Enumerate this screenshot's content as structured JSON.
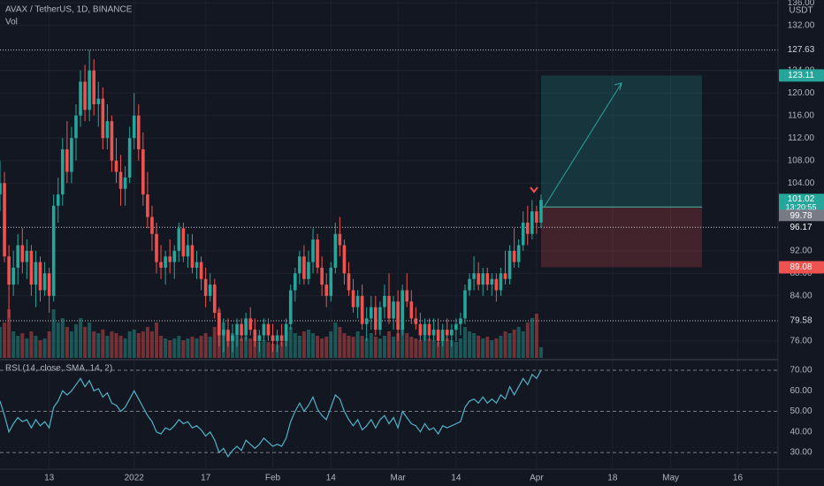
{
  "chart_data": {
    "type": "candlestick",
    "title": "AVAX / TetherUS, 1D, BINANCE",
    "volume_label": "Vol",
    "currency": "USDT",
    "colors": {
      "up": "#26a69a",
      "down": "#ef5350",
      "rsi": "#4fb3c7"
    },
    "x": [
      "2021-12-02",
      "2021-12-03",
      "2021-12-04",
      "2021-12-05",
      "2021-12-06",
      "2021-12-07",
      "2021-12-08",
      "2021-12-09",
      "2021-12-10",
      "2021-12-11",
      "2021-12-12",
      "2021-12-13",
      "2021-12-14",
      "2021-12-15",
      "2021-12-16",
      "2021-12-17",
      "2021-12-18",
      "2021-12-19",
      "2021-12-20",
      "2021-12-21",
      "2021-12-22",
      "2021-12-23",
      "2021-12-24",
      "2021-12-25",
      "2021-12-26",
      "2021-12-27",
      "2021-12-28",
      "2021-12-29",
      "2021-12-30",
      "2021-12-31",
      "2022-01-01",
      "2022-01-02",
      "2022-01-03",
      "2022-01-04",
      "2022-01-05",
      "2022-01-06",
      "2022-01-07",
      "2022-01-08",
      "2022-01-09",
      "2022-01-10",
      "2022-01-11",
      "2022-01-12",
      "2022-01-13",
      "2022-01-14",
      "2022-01-15",
      "2022-01-16",
      "2022-01-17",
      "2022-01-18",
      "2022-01-19",
      "2022-01-20",
      "2022-01-21",
      "2022-01-22",
      "2022-01-23",
      "2022-01-24",
      "2022-01-25",
      "2022-01-26",
      "2022-01-27",
      "2022-01-28",
      "2022-01-29",
      "2022-01-30",
      "2022-01-31",
      "2022-02-01",
      "2022-02-02",
      "2022-02-03",
      "2022-02-04",
      "2022-02-05",
      "2022-02-06",
      "2022-02-07",
      "2022-02-08",
      "2022-02-09",
      "2022-02-10",
      "2022-02-11",
      "2022-02-12",
      "2022-02-13",
      "2022-02-14",
      "2022-02-15",
      "2022-02-16",
      "2022-02-17",
      "2022-02-18",
      "2022-02-19",
      "2022-02-20",
      "2022-02-21",
      "2022-02-22",
      "2022-02-23",
      "2022-02-24",
      "2022-02-25",
      "2022-02-26",
      "2022-02-27",
      "2022-02-28",
      "2022-03-01",
      "2022-03-02",
      "2022-03-03",
      "2022-03-04",
      "2022-03-05",
      "2022-03-06",
      "2022-03-07",
      "2022-03-08",
      "2022-03-09",
      "2022-03-10",
      "2022-03-11",
      "2022-03-12",
      "2022-03-13",
      "2022-03-14",
      "2022-03-15",
      "2022-03-16",
      "2022-03-17",
      "2022-03-18",
      "2022-03-19",
      "2022-03-20",
      "2022-03-21",
      "2022-03-22",
      "2022-03-23",
      "2022-03-24",
      "2022-03-25",
      "2022-03-26",
      "2022-03-27",
      "2022-03-28",
      "2022-03-29",
      "2022-03-30",
      "2022-03-31",
      "2022-04-01",
      "2022-04-02"
    ],
    "ohlc": [
      [
        102,
        108,
        99,
        104
      ],
      [
        104,
        106,
        90,
        91
      ],
      [
        91,
        93,
        80,
        86
      ],
      [
        86,
        92,
        84,
        89
      ],
      [
        89,
        95,
        86,
        93
      ],
      [
        93,
        96,
        88,
        90
      ],
      [
        90,
        94,
        87,
        92
      ],
      [
        92,
        93,
        84,
        86
      ],
      [
        86,
        92,
        82,
        90
      ],
      [
        90,
        91,
        83,
        85
      ],
      [
        85,
        90,
        84,
        88
      ],
      [
        88,
        89,
        81,
        84
      ],
      [
        84,
        102,
        83,
        100
      ],
      [
        100,
        105,
        97,
        102
      ],
      [
        102,
        112,
        100,
        110
      ],
      [
        110,
        115,
        104,
        106
      ],
      [
        106,
        114,
        104,
        112
      ],
      [
        112,
        118,
        108,
        116
      ],
      [
        116,
        124,
        114,
        122
      ],
      [
        122,
        125,
        115,
        117
      ],
      [
        117,
        127.63,
        115,
        124
      ],
      [
        124,
        126,
        116,
        118
      ],
      [
        118,
        122,
        114,
        119
      ],
      [
        119,
        121,
        110,
        112
      ],
      [
        112,
        118,
        110,
        115
      ],
      [
        115,
        116,
        106,
        108
      ],
      [
        108,
        112,
        104,
        106
      ],
      [
        106,
        109,
        100,
        103
      ],
      [
        103,
        107,
        100,
        105
      ],
      [
        105,
        114,
        104,
        112
      ],
      [
        112,
        120,
        110,
        116
      ],
      [
        116,
        118,
        108,
        110
      ],
      [
        110,
        113,
        100,
        102
      ],
      [
        102,
        106,
        96,
        98
      ],
      [
        98,
        100,
        92,
        95
      ],
      [
        95,
        97,
        88,
        90
      ],
      [
        90,
        93,
        87,
        89
      ],
      [
        89,
        92,
        86,
        91
      ],
      [
        91,
        94,
        88,
        90
      ],
      [
        90,
        93,
        87,
        92
      ],
      [
        92,
        97,
        90,
        96
      ],
      [
        96,
        97,
        90,
        91
      ],
      [
        91,
        95,
        89,
        93
      ],
      [
        93,
        95,
        88,
        89
      ],
      [
        89,
        92,
        87,
        90
      ],
      [
        90,
        91,
        85,
        87
      ],
      [
        87,
        89,
        82,
        84
      ],
      [
        84,
        88,
        83,
        86
      ],
      [
        86,
        87,
        80,
        81
      ],
      [
        81,
        82,
        75,
        77
      ],
      [
        77,
        80,
        74,
        78
      ],
      [
        78,
        80,
        75,
        76
      ],
      [
        76,
        79,
        74,
        77
      ],
      [
        77,
        80,
        75,
        79
      ],
      [
        79,
        80,
        76,
        77
      ],
      [
        77,
        81,
        76,
        80
      ],
      [
        80,
        82,
        77,
        78
      ],
      [
        78,
        80,
        75,
        76
      ],
      [
        76,
        78,
        74,
        77
      ],
      [
        77,
        80,
        76,
        79
      ],
      [
        79,
        80,
        76,
        77
      ],
      [
        77,
        79,
        74,
        76
      ],
      [
        76,
        78,
        74,
        77
      ],
      [
        77,
        79,
        75,
        76
      ],
      [
        76,
        80,
        75,
        79
      ],
      [
        79,
        86,
        78,
        85
      ],
      [
        85,
        89,
        83,
        88
      ],
      [
        88,
        92,
        86,
        91
      ],
      [
        91,
        93,
        86,
        87
      ],
      [
        87,
        92,
        86,
        90
      ],
      [
        90,
        96,
        88,
        94
      ],
      [
        94,
        95,
        88,
        89
      ],
      [
        89,
        91,
        84,
        86
      ],
      [
        86,
        88,
        82,
        84
      ],
      [
        84,
        90,
        83,
        89
      ],
      [
        89,
        97,
        88,
        95
      ],
      [
        95,
        98,
        91,
        93
      ],
      [
        93,
        94,
        86,
        88
      ],
      [
        88,
        90,
        84,
        85
      ],
      [
        85,
        87,
        81,
        82
      ],
      [
        82,
        85,
        80,
        84
      ],
      [
        84,
        86,
        78,
        79
      ],
      [
        79,
        82,
        76,
        80
      ],
      [
        80,
        84,
        78,
        82
      ],
      [
        82,
        84,
        77,
        78
      ],
      [
        78,
        83,
        77,
        82
      ],
      [
        82,
        86,
        80,
        84
      ],
      [
        84,
        88,
        79,
        80
      ],
      [
        80,
        84,
        78,
        83
      ],
      [
        83,
        85,
        76,
        78
      ],
      [
        78,
        86,
        77,
        85
      ],
      [
        85,
        88,
        82,
        83
      ],
      [
        83,
        85,
        79,
        80
      ],
      [
        80,
        82,
        78,
        79
      ],
      [
        79,
        81,
        76,
        77
      ],
      [
        77,
        80,
        76,
        79
      ],
      [
        79,
        80,
        76,
        77
      ],
      [
        77,
        80,
        76,
        78
      ],
      [
        78,
        80,
        75,
        76
      ],
      [
        76,
        79,
        75,
        78
      ],
      [
        78,
        80,
        76,
        77
      ],
      [
        77,
        79,
        75,
        78
      ],
      [
        78,
        80,
        76,
        79
      ],
      [
        79,
        81,
        77,
        80
      ],
      [
        80,
        86,
        79,
        85
      ],
      [
        85,
        88,
        84,
        87
      ],
      [
        87,
        91,
        85,
        88
      ],
      [
        88,
        90,
        85,
        86
      ],
      [
        86,
        89,
        84,
        88
      ],
      [
        88,
        89,
        85,
        86
      ],
      [
        86,
        88,
        84,
        87
      ],
      [
        87,
        88,
        83,
        85
      ],
      [
        85,
        89,
        84,
        88
      ],
      [
        88,
        92,
        86,
        87
      ],
      [
        87,
        93,
        86,
        92
      ],
      [
        92,
        96,
        89,
        90
      ],
      [
        90,
        94,
        89,
        93
      ],
      [
        93,
        99,
        92,
        97
      ],
      [
        97,
        100,
        93,
        95
      ],
      [
        95,
        101,
        94,
        99
      ],
      [
        99,
        100,
        95,
        97
      ],
      [
        97,
        102,
        96,
        101.02
      ]
    ],
    "countdown": "13:20:55",
    "volume": [
      35,
      40,
      55,
      30,
      25,
      28,
      22,
      30,
      25,
      20,
      22,
      30,
      55,
      40,
      45,
      35,
      30,
      38,
      45,
      35,
      40,
      30,
      28,
      32,
      25,
      30,
      28,
      25,
      22,
      30,
      32,
      28,
      30,
      35,
      30,
      40,
      25,
      22,
      20,
      22,
      25,
      20,
      22,
      24,
      22,
      25,
      28,
      24,
      35,
      55,
      40,
      30,
      28,
      25,
      22,
      24,
      22,
      20,
      18,
      20,
      18,
      16,
      15,
      18,
      30,
      35,
      28,
      25,
      30,
      32,
      28,
      25,
      22,
      24,
      30,
      40,
      35,
      28,
      25,
      24,
      30,
      25,
      22,
      28,
      24,
      22,
      25,
      30,
      24,
      28,
      35,
      28,
      24,
      22,
      20,
      25,
      22,
      20,
      18,
      20,
      22,
      20,
      18,
      22,
      35,
      30,
      28,
      25,
      22,
      24,
      20,
      22,
      25,
      30,
      28,
      32,
      35,
      30,
      40,
      45,
      50,
      12
    ],
    "volume_lim": [
      0,
      100
    ],
    "xlim": [
      "2021-12-02",
      "2022-05-25"
    ],
    "xticks": [
      {
        "value": "2021-12-13",
        "label": "13"
      },
      {
        "value": "2022-01-01",
        "label": "2022"
      },
      {
        "value": "2022-01-17",
        "label": "17"
      },
      {
        "value": "2022-02-01",
        "label": "Feb"
      },
      {
        "value": "2022-02-14",
        "label": "14"
      },
      {
        "value": "2022-03-01",
        "label": "Mar"
      },
      {
        "value": "2022-03-14",
        "label": "14"
      },
      {
        "value": "2022-04-01",
        "label": "Apr"
      },
      {
        "value": "2022-04-18",
        "label": "18"
      },
      {
        "value": "2022-05-01",
        "label": "May"
      },
      {
        "value": "2022-05-16",
        "label": "16"
      }
    ],
    "ylim": [
      73,
      136.5
    ],
    "yticks": [
      {
        "value": 76,
        "label": "76.00"
      },
      {
        "value": 84,
        "label": "84.00"
      },
      {
        "value": 88,
        "label": "88.00"
      },
      {
        "value": 92,
        "label": "92.00"
      },
      {
        "value": 104,
        "label": "104.00"
      },
      {
        "value": 108,
        "label": "108.00"
      },
      {
        "value": 112,
        "label": "112.00"
      },
      {
        "value": 116,
        "label": "116.00"
      },
      {
        "value": 120,
        "label": "120.00"
      },
      {
        "value": 124,
        "label": "124.00"
      },
      {
        "value": 132,
        "label": "132.00"
      },
      {
        "value": 136,
        "label": "136.00"
      }
    ],
    "levels": [
      127.63,
      96.17,
      79.58
    ],
    "position": {
      "entry": 99.78,
      "target": 123.11,
      "stop": 89.08,
      "start": "2022-04-02",
      "end": "2022-05-08"
    },
    "rsi": {
      "label": "RSI (14, close, SMA, 14, 2)",
      "values": [
        55,
        48,
        40,
        44,
        47,
        45,
        46,
        42,
        46,
        43,
        45,
        42,
        52,
        55,
        60,
        58,
        60,
        63,
        66,
        62,
        65,
        60,
        61,
        57,
        59,
        54,
        53,
        50,
        52,
        56,
        60,
        56,
        52,
        48,
        45,
        40,
        39,
        42,
        41,
        43,
        46,
        44,
        45,
        42,
        43,
        41,
        38,
        40,
        36,
        30,
        32,
        28,
        31,
        33,
        31,
        36,
        34,
        32,
        34,
        37,
        35,
        33,
        34,
        33,
        37,
        45,
        50,
        54,
        50,
        53,
        57,
        51,
        48,
        46,
        52,
        58,
        56,
        50,
        46,
        43,
        46,
        41,
        43,
        46,
        42,
        46,
        48,
        44,
        47,
        42,
        50,
        47,
        44,
        43,
        40,
        44,
        41,
        42,
        39,
        43,
        42,
        43,
        44,
        45,
        52,
        55,
        56,
        54,
        57,
        54,
        56,
        54,
        58,
        56,
        62,
        58,
        62,
        66,
        63,
        68,
        66,
        70
      ],
      "ylim": [
        22.3,
        74.3
      ],
      "yticks": [
        {
          "value": 30,
          "label": "30.00"
        },
        {
          "value": 40,
          "label": "40.00"
        },
        {
          "value": 50,
          "label": "50.00"
        },
        {
          "value": 60,
          "label": "60.00"
        },
        {
          "value": 70,
          "label": "70.00"
        }
      ],
      "bands": [
        70,
        50,
        30
      ]
    }
  }
}
